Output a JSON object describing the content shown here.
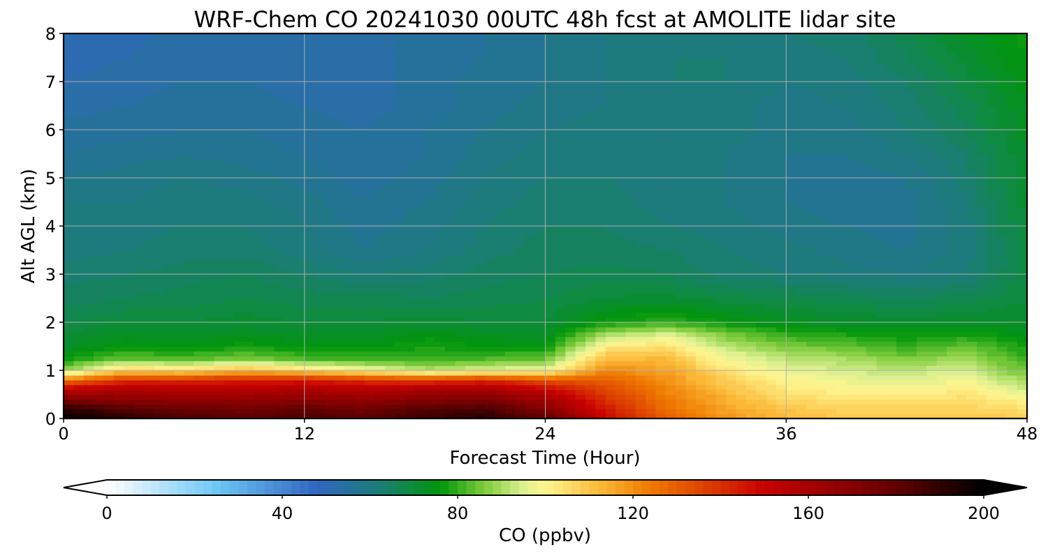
{
  "chart_data": {
    "type": "heatmap",
    "title": "WRF-Chem CO  20241030 00UTC 48h fcst at AMOLITE lidar site",
    "xlabel": "Forecast Time (Hour)",
    "ylabel": "Alt AGL (km)",
    "xlim": [
      0,
      48
    ],
    "ylim": [
      0,
      8
    ],
    "xticks": [
      0,
      12,
      24,
      36,
      48
    ],
    "yticks": [
      0,
      1,
      2,
      3,
      4,
      5,
      6,
      7,
      8
    ],
    "grid": true,
    "x": [
      0,
      3,
      6,
      9,
      12,
      15,
      18,
      21,
      24,
      27,
      30,
      33,
      36,
      39,
      42,
      45,
      48
    ],
    "y": [
      0,
      0.2,
      0.4,
      0.6,
      0.8,
      1,
      1.25,
      1.5,
      1.75,
      2,
      2.5,
      3,
      3.5,
      4,
      4.5,
      5,
      5.5,
      6,
      6.5,
      7,
      7.5,
      8
    ],
    "values": [
      [
        200,
        192,
        185,
        182,
        185,
        182,
        188,
        192,
        182,
        150,
        130,
        120,
        112,
        110,
        110,
        110,
        108
      ],
      [
        192,
        182,
        178,
        176,
        180,
        176,
        183,
        186,
        170,
        145,
        127,
        116,
        110,
        107,
        107,
        107,
        105
      ],
      [
        172,
        168,
        166,
        166,
        168,
        166,
        170,
        172,
        162,
        140,
        125,
        114,
        106,
        104,
        103,
        105,
        100
      ],
      [
        155,
        158,
        156,
        156,
        158,
        156,
        160,
        160,
        152,
        135,
        122,
        111,
        103,
        100,
        99,
        102,
        94
      ],
      [
        125,
        140,
        140,
        144,
        145,
        140,
        138,
        142,
        132,
        130,
        120,
        108,
        100,
        97,
        95,
        98,
        89
      ],
      [
        88,
        108,
        105,
        112,
        106,
        100,
        92,
        96,
        98,
        122,
        116,
        104,
        97,
        94,
        92,
        95,
        84
      ],
      [
        76,
        84,
        82,
        86,
        82,
        80,
        80,
        82,
        84,
        112,
        112,
        98,
        92,
        90,
        86,
        90,
        80
      ],
      [
        72,
        76,
        75,
        77,
        76,
        75,
        78,
        76,
        76,
        102,
        105,
        92,
        86,
        84,
        80,
        84,
        77
      ],
      [
        70,
        73,
        72,
        73,
        72,
        72,
        75,
        73,
        72,
        90,
        95,
        86,
        80,
        78,
        76,
        78,
        74
      ],
      [
        68,
        70,
        70,
        71,
        70,
        70,
        71,
        70,
        70,
        77,
        80,
        76,
        73,
        72,
        71,
        72,
        72
      ],
      [
        65,
        66,
        67,
        68,
        67,
        67,
        66,
        67,
        68,
        70,
        71,
        69,
        68,
        67,
        66,
        67,
        70
      ],
      [
        63,
        64,
        65,
        66,
        64,
        62,
        63,
        65,
        66,
        67,
        66,
        63,
        62,
        61,
        60,
        62,
        69
      ],
      [
        61,
        62,
        63,
        63,
        61,
        58,
        60,
        63,
        65,
        65,
        64,
        62,
        61,
        59,
        58,
        61,
        69
      ],
      [
        61,
        61,
        62,
        62,
        60,
        57,
        59,
        62,
        64,
        64,
        62,
        61,
        59,
        58,
        57,
        61,
        70
      ],
      [
        60,
        60,
        61,
        61,
        59,
        56,
        58,
        61,
        63,
        63,
        61,
        60,
        58,
        57,
        57,
        62,
        71
      ],
      [
        58,
        59,
        60,
        59,
        57,
        55,
        57,
        60,
        62,
        62,
        61,
        60,
        58,
        57,
        58,
        63,
        72
      ],
      [
        56,
        57,
        58,
        57,
        56,
        54,
        56,
        59,
        61,
        61,
        61,
        60,
        58,
        58,
        60,
        64,
        72
      ],
      [
        55,
        55,
        56,
        56,
        55,
        54,
        56,
        58,
        60,
        61,
        62,
        61,
        59,
        59,
        62,
        66,
        73
      ],
      [
        53,
        54,
        55,
        55,
        54,
        53,
        55,
        57,
        59,
        60,
        62,
        61,
        59,
        60,
        63,
        67,
        74
      ],
      [
        52,
        53,
        54,
        54,
        53,
        53,
        55,
        57,
        58,
        60,
        62,
        62,
        60,
        61,
        64,
        69,
        75
      ],
      [
        51,
        52,
        53,
        53,
        53,
        53,
        55,
        56,
        58,
        60,
        62,
        62,
        61,
        62,
        66,
        71,
        76
      ],
      [
        50,
        51,
        53,
        53,
        53,
        53,
        55,
        56,
        58,
        60,
        61,
        62,
        62,
        63,
        67,
        73,
        77
      ]
    ],
    "colorbar": {
      "label": "CO  (ppbv)",
      "min": 0,
      "max": 200,
      "ticks": [
        0,
        40,
        80,
        120,
        160,
        200
      ],
      "extend": "both",
      "levels": 100
    },
    "colormap": [
      {
        "v": 0,
        "c": "#ffffff"
      },
      {
        "v": 25,
        "c": "#6ec6f5"
      },
      {
        "v": 48,
        "c": "#3065c0"
      },
      {
        "v": 62,
        "c": "#1c7d78"
      },
      {
        "v": 76,
        "c": "#00960a"
      },
      {
        "v": 86,
        "c": "#7ccb3a"
      },
      {
        "v": 95,
        "c": "#ddf090"
      },
      {
        "v": 100,
        "c": "#fff690"
      },
      {
        "v": 112,
        "c": "#fbbb3a"
      },
      {
        "v": 124,
        "c": "#ef7a00"
      },
      {
        "v": 150,
        "c": "#c80000"
      },
      {
        "v": 178,
        "c": "#6a0000"
      },
      {
        "v": 200,
        "c": "#000000"
      }
    ]
  }
}
